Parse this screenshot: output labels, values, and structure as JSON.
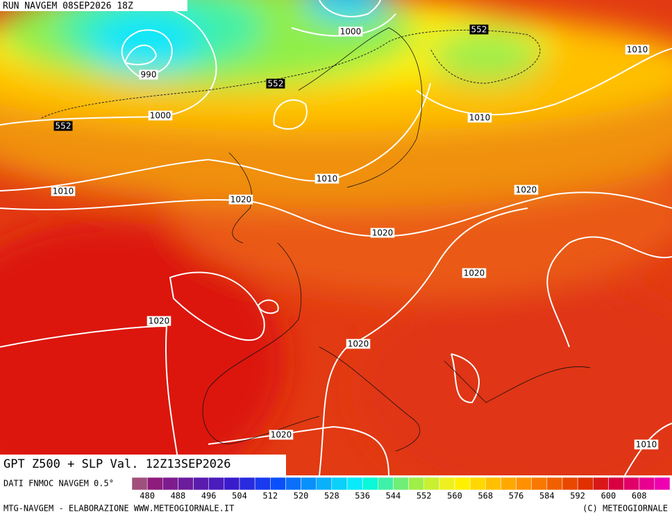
{
  "header": {
    "run": "RUN NAVGEM 08SEP2026 18Z"
  },
  "map": {
    "contour_labels": [
      "1000",
      "552",
      "1010",
      "990",
      "552",
      "1000",
      "1010",
      "552",
      "1010",
      "1010",
      "1020",
      "1020",
      "1020",
      "1020",
      "1020",
      "1020",
      "1020",
      "1010"
    ]
  },
  "caption": "GPT Z500 + SLP Val. 12Z13SEP2026",
  "legend": {
    "source": "DATI FNMOC NAVGEM 0.5°",
    "colors": [
      "#a0507a",
      "#8e1c7c",
      "#7e1c8e",
      "#6c1c9c",
      "#5a1cac",
      "#4a1cbe",
      "#3a1ccc",
      "#2a2ade",
      "#1a3aee",
      "#0a50fa",
      "#0a70fa",
      "#0a90fa",
      "#0ab0fa",
      "#0ad0fa",
      "#0aeafa",
      "#0af8d8",
      "#40f0a8",
      "#70ee78",
      "#a0ee48",
      "#c8f030",
      "#eef020",
      "#fff000",
      "#ffd800",
      "#ffc000",
      "#ffa800",
      "#ff9000",
      "#f87800",
      "#f06000",
      "#e84800",
      "#e03000",
      "#d81818",
      "#d80040",
      "#e00068",
      "#e80090",
      "#ee00b0"
    ],
    "ticks": [
      480,
      488,
      496,
      504,
      512,
      520,
      528,
      536,
      544,
      552,
      560,
      568,
      576,
      584,
      592,
      600,
      608
    ]
  },
  "footer": {
    "left": "MTG-NAVGEM - ELABORAZIONE WWW.METEOGIORNALE.IT",
    "right": "(C) METEOGIORNALE"
  }
}
